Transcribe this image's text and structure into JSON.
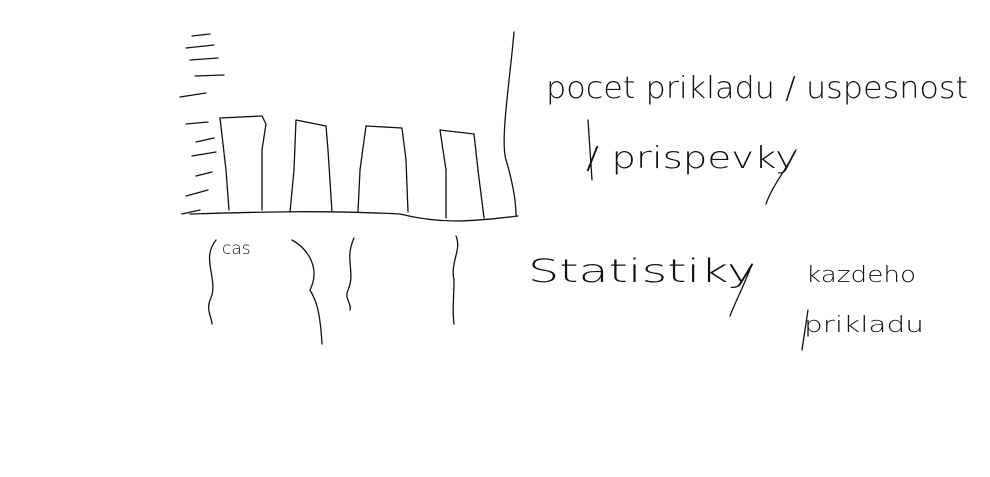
{
  "sketch": {
    "x_axis_label": "cas",
    "top_note": {
      "line1": "pocet prikladu / uspesnost",
      "line2": "/ prispevky"
    },
    "bottom_note": {
      "title": "Statistiky",
      "detail_line1": "kazdeho",
      "detail_line2": "prikladu"
    }
  }
}
